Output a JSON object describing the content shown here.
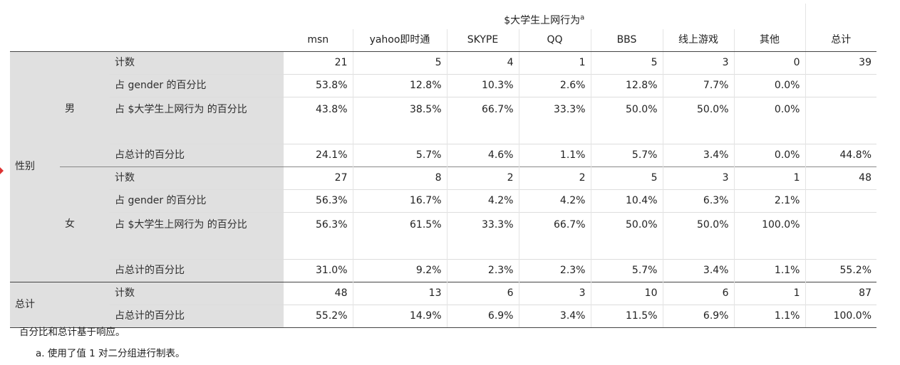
{
  "table": {
    "group_title": "$大学生上网行为",
    "group_title_sup": "a",
    "columns": [
      "msn",
      "yahoo即时通",
      "SKYPE",
      "QQ",
      "BBS",
      "线上游戏",
      "其他",
      "总计"
    ],
    "row_var": "性别",
    "sections": [
      {
        "label": "男",
        "rows": [
          {
            "stat": "计数",
            "values": [
              "21",
              "5",
              "4",
              "1",
              "5",
              "3",
              "0",
              "39"
            ]
          },
          {
            "stat": "占 gender 的百分比",
            "values": [
              "53.8%",
              "12.8%",
              "10.3%",
              "2.6%",
              "12.8%",
              "7.7%",
              "0.0%",
              ""
            ]
          },
          {
            "stat": "占 $大学生上网行为 的百分比",
            "values": [
              "43.8%",
              "38.5%",
              "66.7%",
              "33.3%",
              "50.0%",
              "50.0%",
              "0.0%",
              ""
            ]
          },
          {
            "stat": "占总计的百分比",
            "values": [
              "24.1%",
              "5.7%",
              "4.6%",
              "1.1%",
              "5.7%",
              "3.4%",
              "0.0%",
              "44.8%"
            ]
          }
        ]
      },
      {
        "label": "女",
        "rows": [
          {
            "stat": "计数",
            "values": [
              "27",
              "8",
              "2",
              "2",
              "5",
              "3",
              "1",
              "48"
            ]
          },
          {
            "stat": "占 gender 的百分比",
            "values": [
              "56.3%",
              "16.7%",
              "4.2%",
              "4.2%",
              "10.4%",
              "6.3%",
              "2.1%",
              ""
            ]
          },
          {
            "stat": "占 $大学生上网行为 的百分比",
            "values": [
              "56.3%",
              "61.5%",
              "33.3%",
              "66.7%",
              "50.0%",
              "50.0%",
              "100.0%",
              ""
            ]
          },
          {
            "stat": "占总计的百分比",
            "values": [
              "31.0%",
              "9.2%",
              "2.3%",
              "2.3%",
              "5.7%",
              "3.4%",
              "1.1%",
              "55.2%"
            ]
          }
        ]
      }
    ],
    "total": {
      "label": "总计",
      "rows": [
        {
          "stat": "计数",
          "values": [
            "48",
            "13",
            "6",
            "3",
            "10",
            "6",
            "1",
            "87"
          ]
        },
        {
          "stat": "占总计的百分比",
          "values": [
            "55.2%",
            "14.9%",
            "6.9%",
            "3.4%",
            "11.5%",
            "6.9%",
            "1.1%",
            "100.0%"
          ]
        }
      ]
    }
  },
  "footnotes": {
    "note1": "百分比和总计基于响应。",
    "note2": "a. 使用了值 1 对二分组进行制表。"
  },
  "colors": {
    "stub_bg": "#e0e0e0",
    "marker": "#d33"
  }
}
